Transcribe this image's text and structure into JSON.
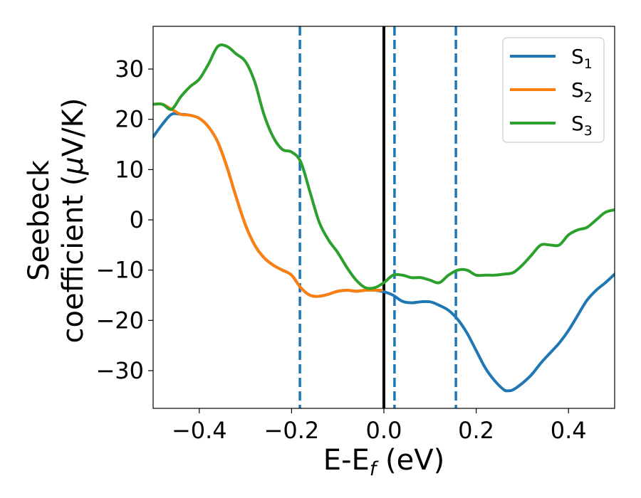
{
  "chart_data": {
    "type": "line",
    "xlabel": "E-E",
    "xlabel_sub": "f",
    "xlabel_unit": " (eV)",
    "ylabel_line1": "Seebeck",
    "ylabel_line2": "coefficient  (",
    "ylabel_mu": "μ",
    "ylabel_unit": "V/K)",
    "xlim": [
      -0.5,
      0.5
    ],
    "ylim": [
      -37.5,
      38.5
    ],
    "xticks": [
      -0.4,
      -0.2,
      0.0,
      0.2,
      0.4
    ],
    "xtick_labels": [
      "−0.4",
      "−0.2",
      "0.0",
      "0.2",
      "0.4"
    ],
    "yticks": [
      -30,
      -20,
      -10,
      0,
      10,
      20,
      30
    ],
    "ytick_labels": [
      "−30",
      "−20",
      "−10",
      "0",
      "10",
      "20",
      "30"
    ],
    "grid": false,
    "legend_position": "top-right",
    "vlines": [
      {
        "x": 0.0,
        "style": "solid",
        "color": "#000000"
      },
      {
        "x": -0.182,
        "style": "dashed",
        "color": "#1f77b4"
      },
      {
        "x": 0.023,
        "style": "dashed",
        "color": "#1f77b4"
      },
      {
        "x": 0.156,
        "style": "dashed",
        "color": "#1f77b4"
      }
    ],
    "series": [
      {
        "name": "S",
        "sub": "1",
        "color": "#1f77b4",
        "x": [
          -0.5,
          -0.48,
          -0.46,
          -0.44,
          -0.42,
          -0.4,
          -0.38,
          -0.36,
          -0.34,
          -0.32,
          -0.3,
          -0.28,
          -0.26,
          -0.24,
          -0.22,
          -0.2,
          -0.18,
          -0.16,
          -0.14,
          -0.12,
          -0.1,
          -0.08,
          -0.06,
          -0.04,
          -0.02,
          0.0,
          0.02,
          0.04,
          0.06,
          0.08,
          0.1,
          0.12,
          0.14,
          0.16,
          0.18,
          0.2,
          0.22,
          0.24,
          0.26,
          0.27,
          0.28,
          0.3,
          0.32,
          0.34,
          0.36,
          0.38,
          0.4,
          0.42,
          0.44,
          0.46,
          0.48,
          0.5
        ],
        "y": [
          16.5,
          19.0,
          21.0,
          21.0,
          20.8,
          20.2,
          18.5,
          15.5,
          10.5,
          4.5,
          -1.0,
          -5.0,
          -7.5,
          -9.0,
          -10.0,
          -11.0,
          -13.5,
          -15.0,
          -15.2,
          -14.8,
          -14.2,
          -14.0,
          -14.2,
          -14.0,
          -14.0,
          -14.3,
          -15.0,
          -16.2,
          -16.5,
          -16.3,
          -16.3,
          -17.0,
          -18.0,
          -19.8,
          -22.5,
          -26.0,
          -29.5,
          -32.0,
          -33.8,
          -34.0,
          -33.8,
          -32.5,
          -30.8,
          -28.5,
          -26.5,
          -24.5,
          -22.0,
          -19.0,
          -16.0,
          -14.0,
          -12.5,
          -10.8
        ]
      },
      {
        "name": "S",
        "sub": "2",
        "color": "#ff7f0e",
        "x": [
          -0.5,
          -0.48,
          -0.46,
          -0.44,
          -0.42,
          -0.4,
          -0.38,
          -0.36,
          -0.34,
          -0.32,
          -0.3,
          -0.28,
          -0.26,
          -0.24,
          -0.22,
          -0.2,
          -0.18,
          -0.16,
          -0.14,
          -0.12,
          -0.1,
          -0.08,
          -0.06,
          -0.04,
          -0.02,
          -0.005
        ],
        "y": [
          23.0,
          23.0,
          22.0,
          21.0,
          20.8,
          20.2,
          18.5,
          15.5,
          10.5,
          4.5,
          -1.0,
          -5.0,
          -7.5,
          -9.0,
          -10.0,
          -11.0,
          -13.5,
          -15.0,
          -15.2,
          -14.8,
          -14.2,
          -14.0,
          -14.2,
          -14.0,
          -14.0,
          -14.0
        ]
      },
      {
        "name": "S",
        "sub": "3",
        "color": "#2ca02c",
        "x": [
          -0.5,
          -0.48,
          -0.46,
          -0.44,
          -0.42,
          -0.4,
          -0.38,
          -0.36,
          -0.34,
          -0.32,
          -0.3,
          -0.28,
          -0.26,
          -0.24,
          -0.22,
          -0.2,
          -0.18,
          -0.16,
          -0.14,
          -0.12,
          -0.1,
          -0.08,
          -0.06,
          -0.04,
          -0.02,
          0.0,
          0.02,
          0.04,
          0.06,
          0.08,
          0.1,
          0.12,
          0.14,
          0.16,
          0.18,
          0.2,
          0.22,
          0.24,
          0.26,
          0.28,
          0.3,
          0.32,
          0.34,
          0.36,
          0.38,
          0.4,
          0.42,
          0.44,
          0.46,
          0.48,
          0.5
        ],
        "y": [
          23.0,
          23.0,
          22.0,
          24.5,
          26.5,
          28.0,
          31.0,
          34.5,
          34.5,
          33.0,
          31.5,
          27.5,
          21.0,
          16.5,
          14.0,
          13.5,
          11.5,
          5.5,
          -0.5,
          -4.0,
          -6.5,
          -9.5,
          -12.0,
          -13.5,
          -13.5,
          -12.5,
          -11.0,
          -11.0,
          -11.5,
          -11.5,
          -12.0,
          -12.5,
          -11.0,
          -10.0,
          -10.0,
          -11.0,
          -11.0,
          -11.0,
          -10.8,
          -10.5,
          -9.0,
          -7.0,
          -5.0,
          -5.0,
          -5.0,
          -3.0,
          -2.0,
          -1.5,
          0.0,
          1.5,
          2.0
        ]
      }
    ]
  }
}
